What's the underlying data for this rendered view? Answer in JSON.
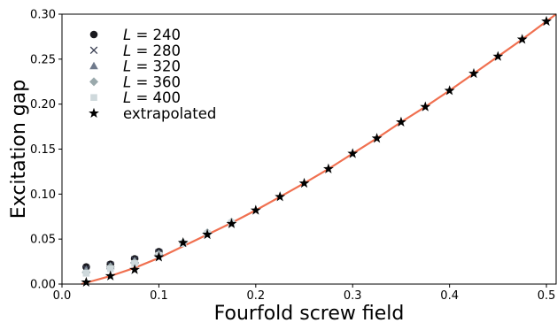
{
  "chart_data": {
    "type": "scatter",
    "xlabel": "Fourfold screw field",
    "ylabel": "Excitation gap",
    "xlim": [
      0.0,
      0.51
    ],
    "ylim": [
      0.0,
      0.3
    ],
    "xticks": [
      "0.0",
      "0.1",
      "0.2",
      "0.3",
      "0.4",
      "0.5"
    ],
    "yticks": [
      "0.00",
      "0.05",
      "0.10",
      "0.15",
      "0.20",
      "0.25",
      "0.30"
    ],
    "legend_position": "top-left",
    "series": [
      {
        "name": "L = 240",
        "legend_var": "L",
        "legend_eq": " = 240",
        "marker": "circle",
        "color": "#1a1a1f",
        "x": [
          0.025,
          0.05,
          0.075,
          0.1
        ],
        "y": [
          0.019,
          0.022,
          0.028,
          0.036
        ]
      },
      {
        "name": "L = 280",
        "legend_var": "L",
        "legend_eq": " = 280",
        "marker": "x",
        "color": "#3a3f52",
        "x": [
          0.025,
          0.05,
          0.075,
          0.1
        ],
        "y": [
          0.017,
          0.021,
          0.027,
          0.035
        ]
      },
      {
        "name": "L = 320",
        "legend_var": "L",
        "legend_eq": " = 320",
        "marker": "triangle",
        "color": "#6f7a8c",
        "x": [
          0.025,
          0.05,
          0.075,
          0.1
        ],
        "y": [
          0.016,
          0.02,
          0.026,
          0.034
        ]
      },
      {
        "name": "L = 360",
        "legend_var": "L",
        "legend_eq": " = 360",
        "marker": "diamond",
        "color": "#9aa9ac",
        "x": [
          0.025,
          0.05,
          0.075,
          0.1,
          0.125,
          0.15,
          0.175
        ],
        "y": [
          0.013,
          0.019,
          0.024,
          0.033,
          0.046,
          0.057,
          0.069
        ]
      },
      {
        "name": "L = 400",
        "legend_var": "L",
        "legend_eq": " = 400",
        "marker": "square",
        "color": "#cfd9dc",
        "x": [
          0.025,
          0.05,
          0.075,
          0.1,
          0.125,
          0.15,
          0.175
        ],
        "y": [
          0.012,
          0.017,
          0.023,
          0.032,
          0.045,
          0.056,
          0.068
        ]
      },
      {
        "name": "extrapolated",
        "legend_var": "",
        "legend_eq": "extrapolated",
        "marker": "star",
        "color": "#000000",
        "x": [
          0.025,
          0.05,
          0.075,
          0.1,
          0.125,
          0.15,
          0.175,
          0.2,
          0.225,
          0.25,
          0.275,
          0.3,
          0.325,
          0.35,
          0.375,
          0.4,
          0.425,
          0.45,
          0.475,
          0.5
        ],
        "y": [
          0.002,
          0.009,
          0.016,
          0.03,
          0.046,
          0.055,
          0.067,
          0.082,
          0.097,
          0.112,
          0.128,
          0.145,
          0.162,
          0.18,
          0.197,
          0.215,
          0.234,
          0.253,
          0.272,
          0.292
        ]
      }
    ],
    "fit_curve": {
      "color": "#f07050",
      "x": [
        0.02,
        0.05,
        0.075,
        0.1,
        0.125,
        0.15,
        0.175,
        0.2,
        0.225,
        0.25,
        0.275,
        0.3,
        0.325,
        0.35,
        0.375,
        0.4,
        0.425,
        0.45,
        0.475,
        0.5,
        0.51
      ],
      "y": [
        0.0,
        0.009,
        0.018,
        0.029,
        0.042,
        0.055,
        0.068,
        0.082,
        0.097,
        0.112,
        0.128,
        0.145,
        0.162,
        0.18,
        0.197,
        0.215,
        0.234,
        0.253,
        0.272,
        0.292,
        0.3
      ]
    }
  }
}
